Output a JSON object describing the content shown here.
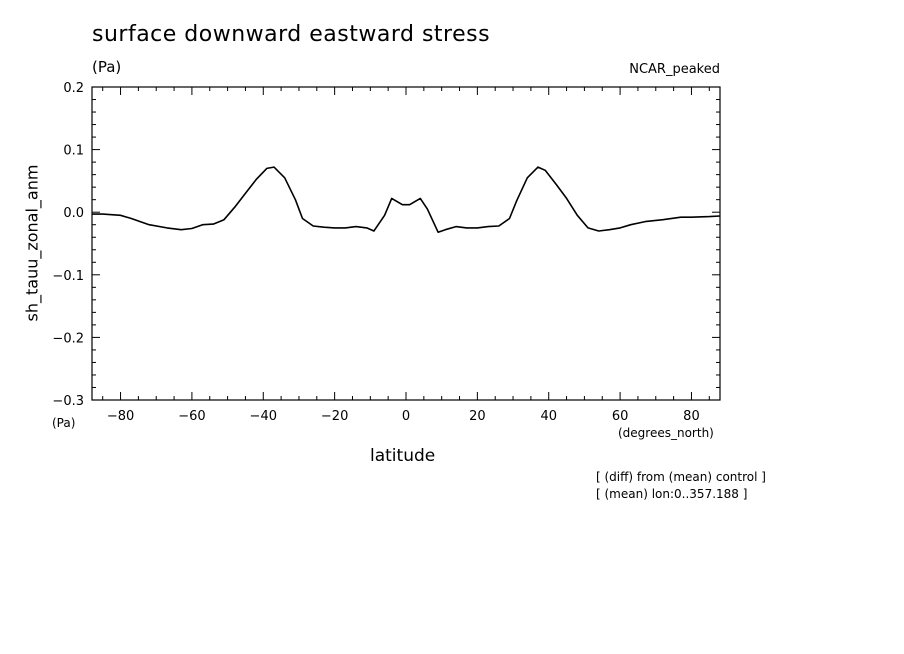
{
  "header": {
    "title": "surface downward eastward stress",
    "units_top": "(Pa)",
    "dataset": "NCAR_peaked",
    "units_bottom": "(Pa)"
  },
  "footer": {
    "note_line1": "[ (diff) from (mean) control ]",
    "note_line2": "[ (mean) lon:0..357.188 ]"
  },
  "chart_data": {
    "type": "line",
    "title": "surface downward eastward stress",
    "xlabel": "latitude",
    "xunits": "(degrees_north)",
    "ylabel": "sh_tauu_zonal_anm",
    "xlim": [
      -88,
      88
    ],
    "ylim": [
      -0.3,
      0.2
    ],
    "xticks": [
      -80,
      -60,
      -40,
      -20,
      0,
      20,
      40,
      60,
      80
    ],
    "yticks": [
      -0.3,
      -0.2,
      -0.1,
      0.0,
      0.1,
      0.2
    ],
    "ytick_labels": [
      "−0.3",
      "−0.2",
      "−0.1",
      "0.0",
      "0.1",
      "0.2"
    ],
    "xtick_labels": [
      "−80",
      "−60",
      "−40",
      "−20",
      "0",
      "20",
      "40",
      "60",
      "80"
    ],
    "grid": false,
    "series": [
      {
        "x": [
          -88,
          -85,
          -80,
          -77,
          -72,
          -67,
          -63,
          -60,
          -57,
          -54,
          -51,
          -48,
          -45,
          -42,
          -39,
          -37,
          -34,
          -31,
          -29,
          -26,
          -23,
          -20,
          -17,
          -14,
          -11,
          -9,
          -6,
          -4,
          -1,
          1,
          4,
          6,
          9,
          11,
          14,
          17,
          20,
          23,
          26,
          29,
          31,
          34,
          37,
          39,
          42,
          45,
          48,
          51,
          54,
          57,
          60,
          63,
          67,
          72,
          77,
          80,
          85,
          88
        ],
        "y": [
          -0.003,
          -0.003,
          -0.005,
          -0.01,
          -0.02,
          -0.025,
          -0.028,
          -0.026,
          -0.02,
          -0.019,
          -0.012,
          0.008,
          0.03,
          0.052,
          0.07,
          0.072,
          0.055,
          0.02,
          -0.01,
          -0.022,
          -0.024,
          -0.025,
          -0.025,
          -0.023,
          -0.025,
          -0.03,
          -0.005,
          0.022,
          0.012,
          0.012,
          0.022,
          0.005,
          -0.032,
          -0.028,
          -0.023,
          -0.025,
          -0.025,
          -0.023,
          -0.022,
          -0.01,
          0.018,
          0.055,
          0.072,
          0.067,
          0.045,
          0.022,
          -0.005,
          -0.025,
          -0.03,
          -0.028,
          -0.025,
          -0.02,
          -0.015,
          -0.012,
          -0.008,
          -0.008,
          -0.007,
          -0.006
        ]
      }
    ]
  }
}
